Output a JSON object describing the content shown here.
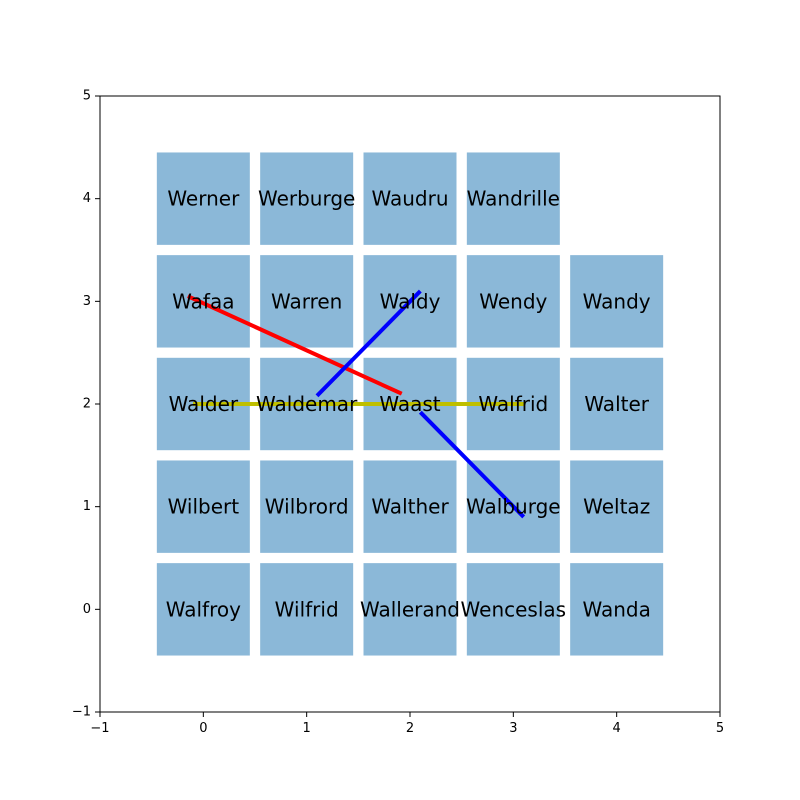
{
  "chart_data": {
    "type": "diagram",
    "xlim": [
      -1,
      5
    ],
    "ylim": [
      -1,
      5
    ],
    "x_ticks": [
      -1,
      0,
      1,
      2,
      3,
      4,
      5
    ],
    "y_ticks": [
      -1,
      0,
      1,
      2,
      3,
      4,
      5
    ],
    "cell_color": "#8bb8d8",
    "cells": [
      {
        "x": 0,
        "y": 4,
        "label": "Werner"
      },
      {
        "x": 1,
        "y": 4,
        "label": "Werburge"
      },
      {
        "x": 2,
        "y": 4,
        "label": "Waudru"
      },
      {
        "x": 3,
        "y": 4,
        "label": "Wandrille"
      },
      {
        "x": 0,
        "y": 3,
        "label": "Wafaa"
      },
      {
        "x": 1,
        "y": 3,
        "label": "Warren"
      },
      {
        "x": 2,
        "y": 3,
        "label": "Waldy"
      },
      {
        "x": 3,
        "y": 3,
        "label": "Wendy"
      },
      {
        "x": 4,
        "y": 3,
        "label": "Wandy"
      },
      {
        "x": 0,
        "y": 2,
        "label": "Walder"
      },
      {
        "x": 1,
        "y": 2,
        "label": "Waldemar"
      },
      {
        "x": 2,
        "y": 2,
        "label": "Waast"
      },
      {
        "x": 3,
        "y": 2,
        "label": "Walfrid"
      },
      {
        "x": 4,
        "y": 2,
        "label": "Walter"
      },
      {
        "x": 0,
        "y": 1,
        "label": "Wilbert"
      },
      {
        "x": 1,
        "y": 1,
        "label": "Wilbrord"
      },
      {
        "x": 2,
        "y": 1,
        "label": "Walther"
      },
      {
        "x": 3,
        "y": 1,
        "label": "Walburge"
      },
      {
        "x": 4,
        "y": 1,
        "label": "Weltaz"
      },
      {
        "x": 0,
        "y": 0,
        "label": "Walfroy"
      },
      {
        "x": 1,
        "y": 0,
        "label": "Wilfrid"
      },
      {
        "x": 2,
        "y": 0,
        "label": "Wallerand"
      },
      {
        "x": 3,
        "y": 0,
        "label": "Wenceslas"
      },
      {
        "x": 4,
        "y": 0,
        "label": "Wanda"
      }
    ],
    "segments": [
      {
        "color": "#ff0000",
        "x1": -0.15,
        "y1": 3.05,
        "x2": 1.92,
        "y2": 2.1
      },
      {
        "color": "#0000ff",
        "x1": 1.1,
        "y1": 2.08,
        "x2": 2.1,
        "y2": 3.1
      },
      {
        "color": "#0000ff",
        "x1": 2.1,
        "y1": 1.92,
        "x2": 3.1,
        "y2": 0.9
      },
      {
        "color": "#bfbf00",
        "x1": -0.1,
        "y1": 2.0,
        "x2": 3.1,
        "y2": 2.0
      }
    ]
  }
}
